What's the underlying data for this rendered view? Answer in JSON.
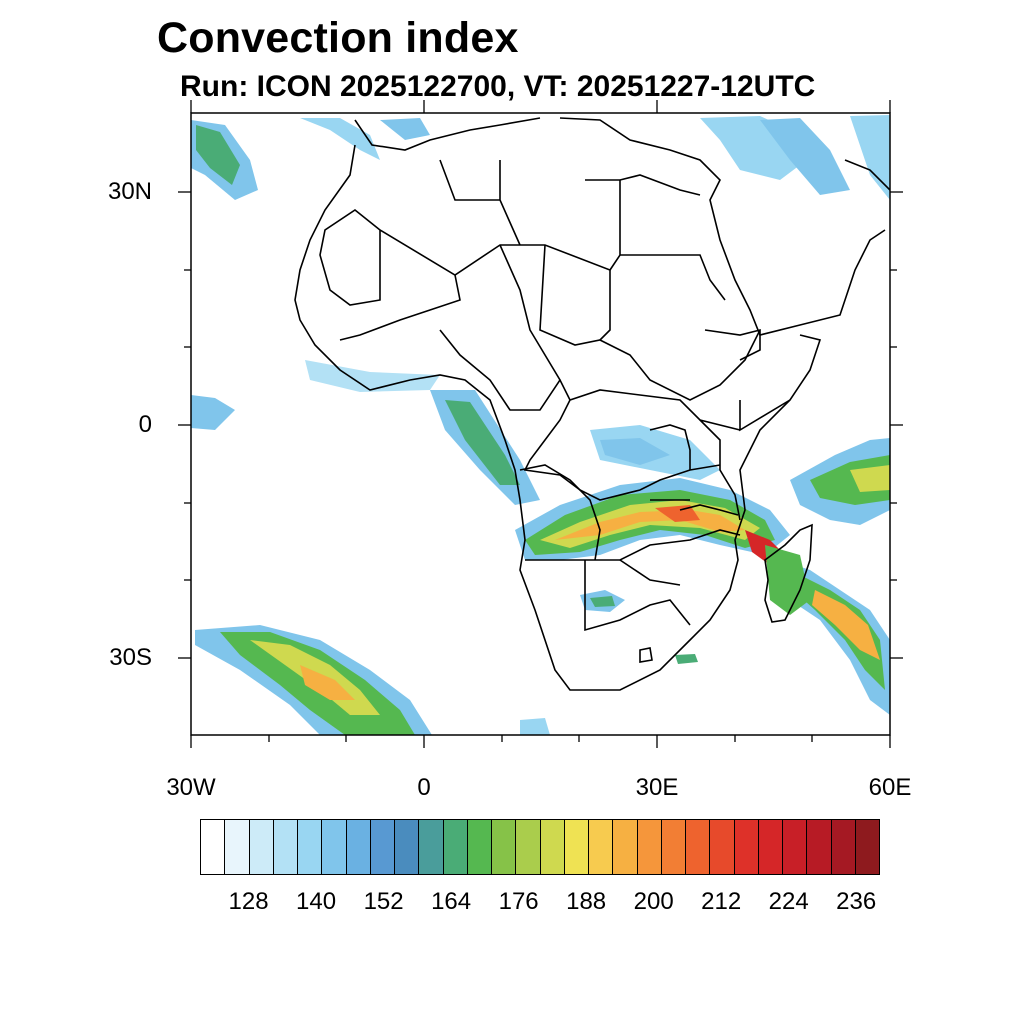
{
  "map": {
    "title": "Convection index",
    "subtitle": "Run: ICON 2025122700,  VT: 20251227-12UTC",
    "lat_labels": [
      "30N",
      "0",
      "30S"
    ],
    "lon_labels": [
      "30W",
      "0",
      "30E",
      "60E"
    ],
    "extent": {
      "lon_min": -30,
      "lon_max": 60,
      "lat_min": -40,
      "lat_max": 40
    }
  },
  "colorbar": {
    "colors": [
      "#ffffff",
      "#e8f5fc",
      "#cdebf8",
      "#b3e1f5",
      "#99d6f2",
      "#80c5eb",
      "#6ab1e2",
      "#5899d2",
      "#4a8cbe",
      "#4a9d9b",
      "#4aac76",
      "#55b850",
      "#86c248",
      "#aacd4c",
      "#cfd94f",
      "#efe253",
      "#f7cb4f",
      "#f6b042",
      "#f5963b",
      "#f27e34",
      "#ee632e",
      "#e74a2b",
      "#de3129",
      "#d52628",
      "#c81f27",
      "#b71b25",
      "#a51923",
      "#8e1a1e"
    ],
    "labels": [
      "128",
      "140",
      "152",
      "164",
      "176",
      "188",
      "200",
      "212",
      "224",
      "236"
    ]
  }
}
